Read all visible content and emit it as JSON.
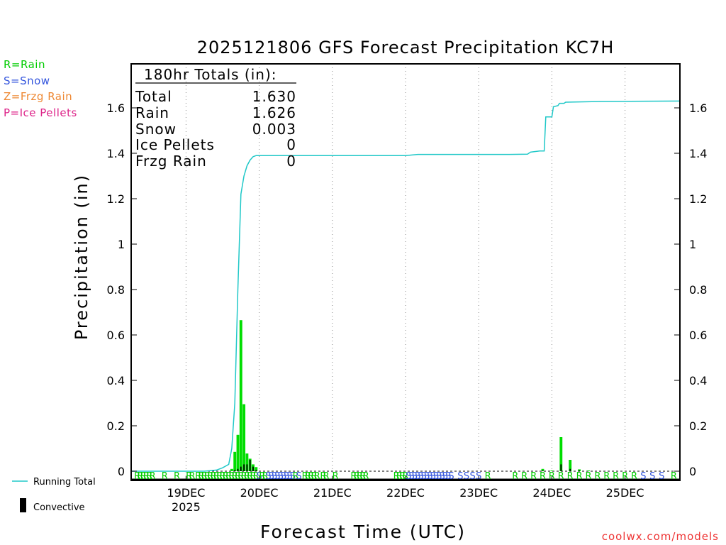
{
  "title": "2025121806 GFS Forecast Precipitation KC7H",
  "legend": [
    {
      "label": "R=Rain",
      "color": "#00cc00"
    },
    {
      "label": "S=Snow",
      "color": "#3355dd"
    },
    {
      "label": "Z=Frzg Rain",
      "color": "#ee8833"
    },
    {
      "label": "P=Ice Pellets",
      "color": "#dd2288"
    }
  ],
  "totals": {
    "header": "180hr Totals (in):",
    "rows": [
      {
        "label": "Total",
        "value": "1.630"
      },
      {
        "label": "Rain",
        "value": "1.626"
      },
      {
        "label": "Snow",
        "value": "0.003"
      },
      {
        "label": "Ice Pellets",
        "value": "0"
      },
      {
        "label": "Frzg Rain",
        "value": "0"
      }
    ]
  },
  "bottom_legend": {
    "running_total": "Running Total",
    "convective": "Convective"
  },
  "credit": "coolwx.com/models",
  "colors": {
    "running_total": "#20c8c8",
    "bars": "#00dd00",
    "convective": "#000000",
    "credit": "#ee3333"
  },
  "chart_data": {
    "type": "bar",
    "title": "2025121806 GFS Forecast Precipitation KC7H",
    "xlabel": "Forecast Time (UTC)",
    "ylabel": "Precipitation (in)",
    "ylim": [
      0,
      1.8
    ],
    "yticks": [
      0,
      0.2,
      0.4,
      0.6,
      0.8,
      1,
      1.2,
      1.4,
      1.6
    ],
    "ytick_labels": [
      "0",
      "0.2",
      "0.4",
      "0.6",
      "0.8",
      "1",
      "1.2",
      "1.4",
      "1.6"
    ],
    "xlim_hours": [
      6,
      186
    ],
    "x_ticks": [
      {
        "hour": 24,
        "label": "19DEC",
        "sub": "2025"
      },
      {
        "hour": 48,
        "label": "20DEC"
      },
      {
        "hour": 72,
        "label": "21DEC"
      },
      {
        "hour": 96,
        "label": "22DEC"
      },
      {
        "hour": 120,
        "label": "23DEC"
      },
      {
        "hour": 144,
        "label": "24DEC"
      },
      {
        "hour": 168,
        "label": "25DEC"
      }
    ],
    "precip_bars": [
      {
        "hour": 39,
        "value": 0.01
      },
      {
        "hour": 40,
        "value": 0.085,
        "convective": 0.005
      },
      {
        "hour": 41,
        "value": 0.16,
        "convective": 0.01
      },
      {
        "hour": 42,
        "value": 0.665,
        "convective": 0.02
      },
      {
        "hour": 43,
        "value": 0.295,
        "convective": 0.03
      },
      {
        "hour": 44,
        "value": 0.078,
        "convective": 0.03
      },
      {
        "hour": 45,
        "value": 0.055,
        "convective": 0.05
      },
      {
        "hour": 46,
        "value": 0.03,
        "convective": 0.02
      },
      {
        "hour": 47,
        "value": 0.018,
        "convective": 0.005
      },
      {
        "hour": 141,
        "value": 0.01,
        "convective": 0.003
      },
      {
        "hour": 144,
        "value": 0.003
      },
      {
        "hour": 147,
        "value": 0.15,
        "convective": 0.03
      },
      {
        "hour": 150,
        "value": 0.05,
        "convective": 0.01
      },
      {
        "hour": 153,
        "value": 0.008,
        "convective": 0.003
      },
      {
        "hour": 156,
        "value": 0.003
      }
    ],
    "running_total": [
      [
        6,
        0
      ],
      [
        30,
        0
      ],
      [
        34,
        0.005
      ],
      [
        36,
        0.015
      ],
      [
        38,
        0.03
      ],
      [
        39,
        0.1
      ],
      [
        40,
        0.3
      ],
      [
        41,
        0.8
      ],
      [
        42,
        1.22
      ],
      [
        43,
        1.3
      ],
      [
        44,
        1.345
      ],
      [
        45,
        1.37
      ],
      [
        46,
        1.385
      ],
      [
        47,
        1.39
      ],
      [
        60,
        1.39
      ],
      [
        96,
        1.39
      ],
      [
        100,
        1.395
      ],
      [
        130,
        1.395
      ],
      [
        136,
        1.396
      ],
      [
        137,
        1.405
      ],
      [
        140,
        1.41
      ],
      [
        141.5,
        1.41
      ],
      [
        142,
        1.56
      ],
      [
        144,
        1.56
      ],
      [
        144.5,
        1.605
      ],
      [
        146,
        1.61
      ],
      [
        146.5,
        1.62
      ],
      [
        148,
        1.62
      ],
      [
        148.5,
        1.625
      ],
      [
        160,
        1.628
      ],
      [
        186,
        1.63
      ]
    ],
    "ptype_strip": [
      {
        "hour": 8,
        "code": "R"
      },
      {
        "hour": 9,
        "code": "R"
      },
      {
        "hour": 10,
        "code": "R"
      },
      {
        "hour": 11,
        "code": "R"
      },
      {
        "hour": 12,
        "code": "R"
      },
      {
        "hour": 13,
        "code": "R"
      },
      {
        "hour": 17,
        "code": "R"
      },
      {
        "hour": 21,
        "code": "R"
      },
      {
        "hour": 25,
        "code": "R"
      },
      {
        "hour": 26,
        "code": "R"
      },
      {
        "hour": 28,
        "code": "R"
      },
      {
        "hour": 29,
        "code": "R"
      },
      {
        "hour": 30,
        "code": "R"
      },
      {
        "hour": 31,
        "code": "R"
      },
      {
        "hour": 32,
        "code": "R"
      },
      {
        "hour": 33,
        "code": "R"
      },
      {
        "hour": 34,
        "code": "R"
      },
      {
        "hour": 35,
        "code": "R"
      },
      {
        "hour": 36,
        "code": "R"
      },
      {
        "hour": 37,
        "code": "R"
      },
      {
        "hour": 38,
        "code": "R"
      },
      {
        "hour": 39,
        "code": "R"
      },
      {
        "hour": 40,
        "code": "R"
      },
      {
        "hour": 41,
        "code": "R"
      },
      {
        "hour": 42,
        "code": "R"
      },
      {
        "hour": 43,
        "code": "R"
      },
      {
        "hour": 44,
        "code": "R"
      },
      {
        "hour": 45,
        "code": "R"
      },
      {
        "hour": 46,
        "code": "R"
      },
      {
        "hour": 47,
        "code": "R"
      },
      {
        "hour": 48,
        "code": "S"
      },
      {
        "hour": 49,
        "code": "R"
      },
      {
        "hour": 50,
        "code": "R"
      },
      {
        "hour": 51,
        "code": "S"
      },
      {
        "hour": 52,
        "code": "S"
      },
      {
        "hour": 53,
        "code": "S"
      },
      {
        "hour": 54,
        "code": "S"
      },
      {
        "hour": 55,
        "code": "S"
      },
      {
        "hour": 56,
        "code": "S"
      },
      {
        "hour": 57,
        "code": "S"
      },
      {
        "hour": 58,
        "code": "S"
      },
      {
        "hour": 59,
        "code": "S"
      },
      {
        "hour": 60,
        "code": "R"
      },
      {
        "hour": 61,
        "code": "S"
      },
      {
        "hour": 63,
        "code": "R"
      },
      {
        "hour": 64,
        "code": "R"
      },
      {
        "hour": 65,
        "code": "R"
      },
      {
        "hour": 66,
        "code": "R"
      },
      {
        "hour": 67,
        "code": "R"
      },
      {
        "hour": 69,
        "code": "R"
      },
      {
        "hour": 70,
        "code": "R"
      },
      {
        "hour": 73,
        "code": "R"
      },
      {
        "hour": 79,
        "code": "R"
      },
      {
        "hour": 80,
        "code": "R"
      },
      {
        "hour": 81,
        "code": "R"
      },
      {
        "hour": 82,
        "code": "R"
      },
      {
        "hour": 83,
        "code": "R"
      },
      {
        "hour": 93,
        "code": "R"
      },
      {
        "hour": 94,
        "code": "R"
      },
      {
        "hour": 95,
        "code": "R"
      },
      {
        "hour": 96,
        "code": "R"
      },
      {
        "hour": 97,
        "code": "S"
      },
      {
        "hour": 98,
        "code": "S"
      },
      {
        "hour": 99,
        "code": "S"
      },
      {
        "hour": 100,
        "code": "S"
      },
      {
        "hour": 101,
        "code": "S"
      },
      {
        "hour": 102,
        "code": "S"
      },
      {
        "hour": 103,
        "code": "S"
      },
      {
        "hour": 104,
        "code": "S"
      },
      {
        "hour": 105,
        "code": "S"
      },
      {
        "hour": 106,
        "code": "S"
      },
      {
        "hour": 107,
        "code": "S"
      },
      {
        "hour": 108,
        "code": "S"
      },
      {
        "hour": 109,
        "code": "S"
      },
      {
        "hour": 110,
        "code": "S"
      },
      {
        "hour": 111,
        "code": "S"
      },
      {
        "hour": 114,
        "code": "S"
      },
      {
        "hour": 116,
        "code": "S"
      },
      {
        "hour": 118,
        "code": "S"
      },
      {
        "hour": 120,
        "code": "S"
      },
      {
        "hour": 123,
        "code": "R"
      },
      {
        "hour": 132,
        "code": "R"
      },
      {
        "hour": 135,
        "code": "R"
      },
      {
        "hour": 138,
        "code": "R"
      },
      {
        "hour": 141,
        "code": "R"
      },
      {
        "hour": 144,
        "code": "R"
      },
      {
        "hour": 147,
        "code": "R"
      },
      {
        "hour": 150,
        "code": "R"
      },
      {
        "hour": 153,
        "code": "R"
      },
      {
        "hour": 156,
        "code": "R"
      },
      {
        "hour": 159,
        "code": "R"
      },
      {
        "hour": 162,
        "code": "R"
      },
      {
        "hour": 165,
        "code": "R"
      },
      {
        "hour": 168,
        "code": "R"
      },
      {
        "hour": 171,
        "code": "R"
      },
      {
        "hour": 174,
        "code": "S"
      },
      {
        "hour": 177,
        "code": "S"
      },
      {
        "hour": 180,
        "code": "S"
      },
      {
        "hour": 184,
        "code": "R"
      }
    ]
  }
}
